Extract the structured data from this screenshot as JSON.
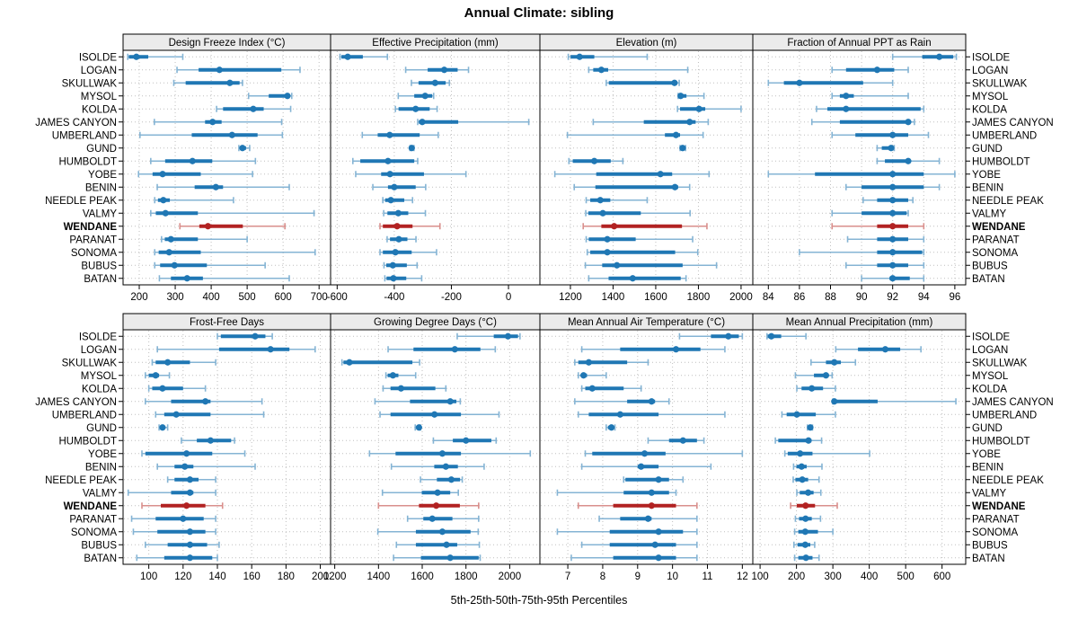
{
  "title": "Annual Climate: sibling",
  "caption": "5th-25th-50th-75th-95th Percentiles",
  "colors": {
    "series": "#1f77b4",
    "series_light": "#85b4d4",
    "highlight": "#b22222",
    "highlight_light": "#d98f8c",
    "strip_bg": "#ebebeb",
    "grid": "#bfbfbf",
    "border": "#000000",
    "text": "#000000"
  },
  "sites": [
    "ISOLDE",
    "LOGAN",
    "SKULLWAK",
    "MYSOL",
    "KOLDA",
    "JAMES CANYON",
    "UMBERLAND",
    "GUND",
    "HUMBOLDT",
    "YOBE",
    "BENIN",
    "NEEDLE PEAK",
    "VALMY",
    "WENDANE",
    "PARANAT",
    "SONOMA",
    "BUBUS",
    "BATAN"
  ],
  "highlight_site": "WENDANE",
  "chart_data": {
    "type": "dotplot-percentiles",
    "percentile_labels": [
      "5th",
      "25th",
      "50th",
      "75th",
      "95th"
    ],
    "legend_position": "none",
    "grid": true,
    "panels": [
      {
        "title": "Design Freeze Index (°C)",
        "domain": [
          155,
          732
        ],
        "ticks": [
          200,
          300,
          400,
          500,
          600,
          700
        ],
        "values": [
          [
            168,
            171,
            192,
            225,
            321
          ],
          [
            305,
            365,
            423,
            595,
            647
          ],
          [
            296,
            329,
            452,
            479,
            487
          ],
          [
            504,
            560,
            612,
            618,
            624
          ],
          [
            415,
            433,
            517,
            546,
            621
          ],
          [
            242,
            383,
            404,
            429,
            596
          ],
          [
            202,
            346,
            458,
            529,
            598
          ],
          [
            477,
            481,
            487,
            497,
            507
          ],
          [
            232,
            272,
            348,
            403,
            523
          ],
          [
            198,
            237,
            265,
            371,
            515
          ],
          [
            250,
            354,
            413,
            433,
            617
          ],
          [
            243,
            252,
            267,
            285,
            462
          ],
          [
            232,
            246,
            273,
            363,
            686
          ],
          [
            313,
            367,
            391,
            488,
            605
          ],
          [
            262,
            271,
            288,
            363,
            500
          ],
          [
            243,
            254,
            283,
            371,
            689
          ],
          [
            243,
            258,
            298,
            388,
            550
          ],
          [
            256,
            288,
            333,
            377,
            617
          ]
        ]
      },
      {
        "title": "Effective Precipitation (mm)",
        "domain": [
          -623,
          110
        ],
        "ticks": [
          -600,
          -400,
          -200,
          0
        ],
        "values": [
          [
            -590,
            -585,
            -563,
            -510,
            -424
          ],
          [
            -360,
            -283,
            -225,
            -178,
            -140
          ],
          [
            -340,
            -315,
            -257,
            -220,
            -207
          ],
          [
            -386,
            -330,
            -292,
            -267,
            -262
          ],
          [
            -396,
            -385,
            -325,
            -276,
            -250
          ],
          [
            -318,
            -314,
            -302,
            -176,
            71
          ],
          [
            -512,
            -458,
            -416,
            -311,
            -246
          ],
          [
            -345,
            -342,
            -339,
            -335,
            -331
          ],
          [
            -545,
            -519,
            -422,
            -330,
            -318
          ],
          [
            -535,
            -446,
            -415,
            -296,
            -149
          ],
          [
            -475,
            -422,
            -400,
            -325,
            -290
          ],
          [
            -440,
            -432,
            -412,
            -365,
            -336
          ],
          [
            -437,
            -424,
            -386,
            -351,
            -291
          ],
          [
            -450,
            -440,
            -390,
            -336,
            -240
          ],
          [
            -425,
            -415,
            -384,
            -354,
            -324
          ],
          [
            -450,
            -440,
            -396,
            -339,
            -252
          ],
          [
            -436,
            -428,
            -405,
            -356,
            -320
          ],
          [
            -433,
            -427,
            -403,
            -358,
            -304
          ]
        ]
      },
      {
        "title": "Elevation (m)",
        "domain": [
          1057,
          2055
        ],
        "ticks": [
          1200,
          1400,
          1600,
          1800,
          2000
        ],
        "values": [
          [
            1190,
            1201,
            1243,
            1312,
            1560
          ],
          [
            1286,
            1307,
            1345,
            1377,
            1750
          ],
          [
            1368,
            1380,
            1688,
            1700,
            1710
          ],
          [
            1705,
            1707,
            1717,
            1744,
            1826
          ],
          [
            1702,
            1714,
            1803,
            1832,
            2000
          ],
          [
            1307,
            1544,
            1759,
            1787,
            1846
          ],
          [
            1186,
            1643,
            1695,
            1714,
            1822
          ],
          [
            1714,
            1720,
            1726,
            1733,
            1740
          ],
          [
            1193,
            1211,
            1312,
            1389,
            1446
          ],
          [
            1127,
            1321,
            1622,
            1677,
            1850
          ],
          [
            1218,
            1317,
            1690,
            1705,
            1759
          ],
          [
            1274,
            1293,
            1340,
            1387,
            1560
          ],
          [
            1272,
            1284,
            1352,
            1530,
            1761
          ],
          [
            1260,
            1345,
            1405,
            1723,
            1840
          ],
          [
            1274,
            1286,
            1373,
            1506,
            1773
          ],
          [
            1279,
            1293,
            1373,
            1691,
            1797
          ],
          [
            1270,
            1349,
            1418,
            1726,
            1885
          ],
          [
            1286,
            1379,
            1492,
            1717,
            1742
          ]
        ]
      },
      {
        "title": "Fraction of Annual PPT as Rain",
        "domain": [
          83.0,
          96.7
        ],
        "ticks": [
          84,
          86,
          88,
          90,
          92,
          94,
          96
        ],
        "values": [
          [
            92.0,
            93.9,
            95.0,
            95.9,
            96.1
          ],
          [
            88.1,
            89.0,
            91.0,
            92.1,
            93.0
          ],
          [
            84.0,
            85.0,
            86.0,
            90.1,
            92.0
          ],
          [
            88.1,
            88.6,
            89.0,
            89.5,
            93.0
          ],
          [
            87.1,
            87.8,
            89.0,
            93.8,
            94.0
          ],
          [
            86.8,
            88.6,
            93.0,
            93.1,
            93.4
          ],
          [
            88.1,
            89.6,
            92.0,
            93.0,
            94.3
          ],
          [
            91.0,
            91.3,
            91.9,
            92.0,
            92.1
          ],
          [
            91.0,
            91.5,
            93.0,
            93.1,
            95.0
          ],
          [
            84.0,
            87.0,
            92.0,
            94.0,
            96.0
          ],
          [
            89.0,
            90.0,
            92.0,
            94.0,
            95.0
          ],
          [
            90.1,
            91.0,
            92.0,
            93.0,
            93.3
          ],
          [
            88.1,
            90.0,
            92.0,
            92.9,
            93.0
          ],
          [
            88.1,
            91.0,
            92.0,
            93.0,
            94.0
          ],
          [
            89.1,
            91.0,
            92.0,
            93.0,
            94.0
          ],
          [
            86.0,
            91.0,
            92.0,
            93.9,
            94.0
          ],
          [
            89.0,
            91.0,
            92.0,
            93.0,
            94.0
          ],
          [
            90.0,
            91.8,
            92.0,
            93.1,
            94.0
          ]
        ]
      },
      {
        "title": "Frost-Free Days",
        "domain": [
          85,
          206
        ],
        "ticks": [
          100,
          120,
          140,
          160,
          180,
          200
        ],
        "values": [
          [
            140,
            142,
            162,
            168,
            172
          ],
          [
            105,
            141,
            171,
            182,
            197
          ],
          [
            102,
            104,
            111,
            124,
            139
          ],
          [
            98,
            100,
            104,
            106,
            112
          ],
          [
            100,
            102,
            108,
            120,
            133
          ],
          [
            98,
            113,
            133,
            136,
            166
          ],
          [
            104,
            109,
            116,
            136,
            167
          ],
          [
            106,
            107,
            108,
            109,
            111
          ],
          [
            119,
            128,
            136,
            148,
            150
          ],
          [
            96,
            98,
            122,
            137,
            156
          ],
          [
            105,
            115,
            121,
            126,
            162
          ],
          [
            111,
            115,
            124,
            129,
            139
          ],
          [
            88,
            113,
            124,
            126,
            139
          ],
          [
            96,
            107,
            122,
            133,
            143
          ],
          [
            90,
            104,
            120,
            132,
            139
          ],
          [
            91,
            105,
            124,
            133,
            139
          ],
          [
            98,
            111,
            124,
            134,
            141
          ],
          [
            93,
            109,
            124,
            137,
            140
          ]
        ]
      },
      {
        "title": "Growing Degree Days (°C)",
        "domain": [
          1181,
          2138
        ],
        "ticks": [
          1200,
          1400,
          1600,
          1800,
          2000
        ],
        "values": [
          [
            1760,
            1927,
            1992,
            2038,
            2047
          ],
          [
            1444,
            1560,
            1749,
            1866,
            1934
          ],
          [
            1233,
            1240,
            1267,
            1555,
            1588
          ],
          [
            1434,
            1442,
            1466,
            1491,
            1570
          ],
          [
            1421,
            1455,
            1503,
            1660,
            1708
          ],
          [
            1384,
            1544,
            1728,
            1756,
            1774
          ],
          [
            1407,
            1455,
            1656,
            1777,
            1951
          ],
          [
            1568,
            1576,
            1585,
            1590,
            1592
          ],
          [
            1651,
            1740,
            1800,
            1916,
            1938
          ],
          [
            1359,
            1478,
            1692,
            1777,
            2094
          ],
          [
            1459,
            1655,
            1708,
            1763,
            1883
          ],
          [
            1592,
            1667,
            1733,
            1773,
            1783
          ],
          [
            1418,
            1598,
            1670,
            1728,
            1765
          ],
          [
            1400,
            1585,
            1664,
            1772,
            1858
          ],
          [
            1533,
            1605,
            1646,
            1738,
            1858
          ],
          [
            1397,
            1571,
            1692,
            1821,
            1856
          ],
          [
            1482,
            1571,
            1711,
            1760,
            1861
          ],
          [
            1469,
            1594,
            1728,
            1858,
            1865
          ]
        ]
      },
      {
        "title": "Mean Annual Air Temperature (°C)",
        "domain": [
          6.2,
          12.3
        ],
        "ticks": [
          7,
          8,
          9,
          10,
          11,
          12
        ],
        "values": [
          [
            10.2,
            11.1,
            11.6,
            11.9,
            12.0
          ],
          [
            7.4,
            8.5,
            10.1,
            10.8,
            11.5
          ],
          [
            7.2,
            7.3,
            7.6,
            8.7,
            9.3
          ],
          [
            7.3,
            7.4,
            7.45,
            7.55,
            8.1
          ],
          [
            7.4,
            7.5,
            7.7,
            8.6,
            9.1
          ],
          [
            7.2,
            8.7,
            9.4,
            9.5,
            9.9
          ],
          [
            7.3,
            7.6,
            8.5,
            9.6,
            11.5
          ],
          [
            8.1,
            8.15,
            8.25,
            8.3,
            8.35
          ],
          [
            9.3,
            9.9,
            10.3,
            10.7,
            10.9
          ],
          [
            7.5,
            7.7,
            9.2,
            9.8,
            12.0
          ],
          [
            7.4,
            9.0,
            9.1,
            9.6,
            11.1
          ],
          [
            8.6,
            8.65,
            9.6,
            9.9,
            10.3
          ],
          [
            6.7,
            8.6,
            9.4,
            9.9,
            10.1
          ],
          [
            7.3,
            8.3,
            9.4,
            10.1,
            10.7
          ],
          [
            7.9,
            8.5,
            9.3,
            9.4,
            10.7
          ],
          [
            6.7,
            8.2,
            9.6,
            10.3,
            10.7
          ],
          [
            7.4,
            8.2,
            9.5,
            10.1,
            10.7
          ],
          [
            7.1,
            8.3,
            9.6,
            10.1,
            10.7
          ]
        ]
      },
      {
        "title": "Mean Annual Precipitation (mm)",
        "domain": [
          80,
          665
        ],
        "ticks": [
          100,
          200,
          300,
          400,
          500,
          600
        ],
        "values": [
          [
            119,
            121,
            131,
            158,
            226
          ],
          [
            308,
            369,
            444,
            485,
            542
          ],
          [
            240,
            281,
            304,
            322,
            362
          ],
          [
            197,
            248,
            281,
            288,
            298
          ],
          [
            201,
            214,
            242,
            273,
            307
          ],
          [
            300,
            302,
            304,
            423,
            638
          ],
          [
            160,
            173,
            201,
            253,
            307
          ],
          [
            230,
            234,
            238,
            241,
            244
          ],
          [
            142,
            150,
            233,
            241,
            269
          ],
          [
            168,
            176,
            210,
            244,
            401
          ],
          [
            192,
            200,
            214,
            228,
            270
          ],
          [
            191,
            197,
            216,
            232,
            262
          ],
          [
            201,
            209,
            232,
            247,
            267
          ],
          [
            184,
            201,
            225,
            251,
            312
          ],
          [
            197,
            207,
            225,
            242,
            266
          ],
          [
            195,
            205,
            224,
            259,
            300
          ],
          [
            193,
            203,
            224,
            238,
            250
          ],
          [
            195,
            205,
            226,
            244,
            262
          ]
        ]
      }
    ]
  }
}
